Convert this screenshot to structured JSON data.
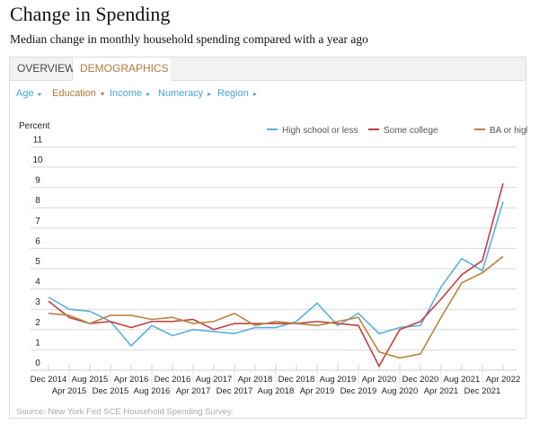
{
  "title": "Change in Spending",
  "subtitle": "Median change in monthly household spending compared with a year ago",
  "tabs": [
    {
      "label": "OVERVIEW"
    },
    {
      "label": "DEMOGRAPHICS"
    }
  ],
  "filters": [
    {
      "label": "Age",
      "arrow": "▸",
      "color": "#4aa3d8"
    },
    {
      "label": "Education",
      "arrow": "▾",
      "color": "#b07a3a"
    },
    {
      "label": "Income",
      "arrow": "▸",
      "color": "#4aa3d8"
    },
    {
      "label": "Numeracy",
      "arrow": "▸",
      "color": "#4aa3d8"
    },
    {
      "label": "Region",
      "arrow": "▸",
      "color": "#4aa3d8"
    }
  ],
  "source": "Source: New York Fed SCE Household Spending Survey.",
  "chart_data": {
    "type": "line",
    "ylabel": "Percent",
    "ylim": [
      0,
      11
    ],
    "yticks": [
      0,
      1,
      2,
      3,
      4,
      5,
      6,
      7,
      8,
      9,
      10,
      11
    ],
    "grid": true,
    "legend": "top-right",
    "categories": [
      "Dec 2014",
      "Apr 2015",
      "Aug 2015",
      "Dec 2015",
      "Apr 2016",
      "Aug 2016",
      "Dec 2016",
      "Apr 2017",
      "Aug 2017",
      "Dec 2017",
      "Apr 2018",
      "Aug 2018",
      "Dec 2018",
      "Apr 2019",
      "Aug 2019",
      "Dec 2019",
      "Apr 2020",
      "Aug 2020",
      "Dec 2020",
      "Apr 2021",
      "Aug 2021",
      "Dec 2021",
      "Apr 2022"
    ],
    "series": [
      {
        "name": "High school or less",
        "color": "#5ab0de",
        "values": [
          3.6,
          3.0,
          2.9,
          2.4,
          1.2,
          2.2,
          1.7,
          2.0,
          1.9,
          1.8,
          2.1,
          2.1,
          2.4,
          3.3,
          2.2,
          2.8,
          1.8,
          2.1,
          2.2,
          4.1,
          5.5,
          4.9,
          8.3
        ]
      },
      {
        "name": "Some college",
        "color": "#c0403f",
        "values": [
          3.4,
          2.6,
          2.3,
          2.4,
          2.1,
          2.4,
          2.4,
          2.5,
          2.0,
          2.3,
          2.3,
          2.3,
          2.3,
          2.4,
          2.3,
          2.2,
          0.2,
          2.0,
          2.4,
          3.5,
          4.7,
          5.4,
          9.2
        ]
      },
      {
        "name": "BA or higher",
        "color": "#b8843e",
        "values": [
          2.8,
          2.7,
          2.3,
          2.7,
          2.7,
          2.5,
          2.6,
          2.3,
          2.4,
          2.8,
          2.2,
          2.4,
          2.3,
          2.2,
          2.4,
          2.6,
          0.9,
          0.6,
          0.8,
          2.6,
          4.3,
          4.8,
          5.6
        ]
      }
    ]
  }
}
